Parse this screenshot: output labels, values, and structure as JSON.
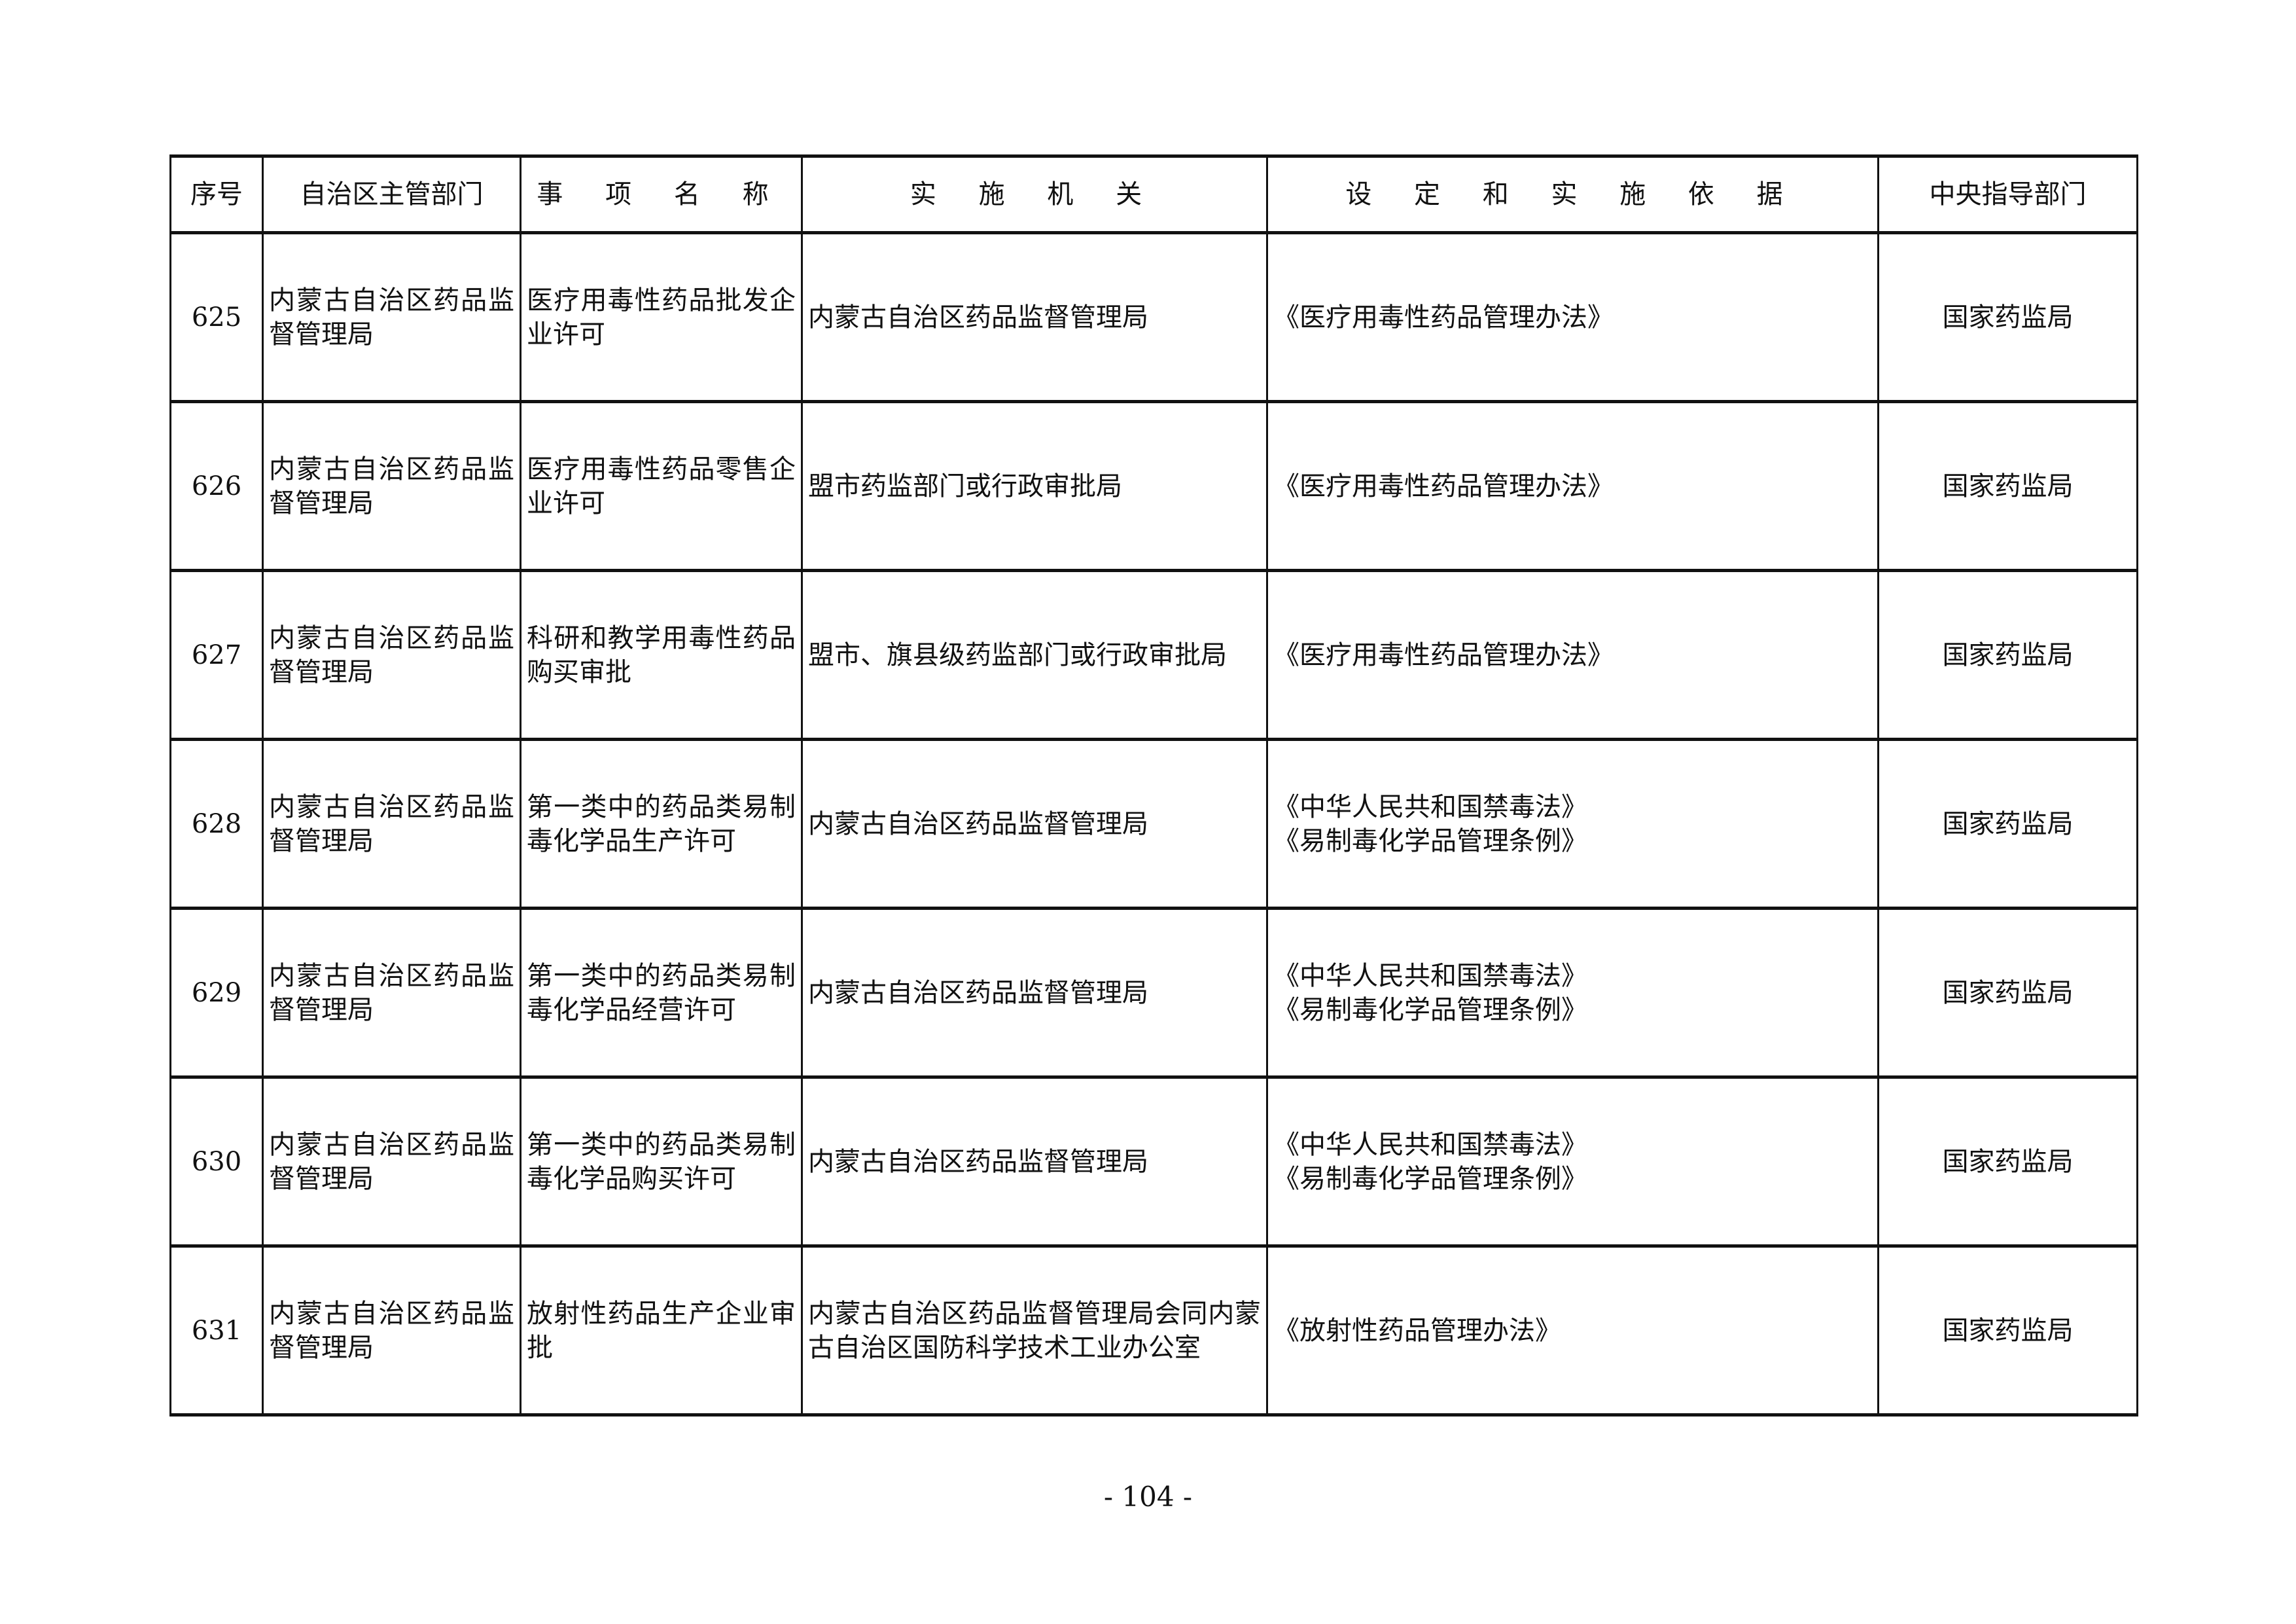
{
  "table": {
    "headers": [
      "序号",
      "自治区主管部门",
      "事 项 名 称",
      "实 施 机 关",
      "设 定 和 实 施 依 据",
      "中央指导部门"
    ],
    "rows": [
      {
        "no": "625",
        "dept": "内蒙古自治区药品监督管理局",
        "item": "医疗用毒性药品批发企业许可",
        "agency": "内蒙古自治区药品监督管理局",
        "basis": [
          "《医疗用毒性药品管理办法》"
        ],
        "central": "国家药监局"
      },
      {
        "no": "626",
        "dept": "内蒙古自治区药品监督管理局",
        "item": "医疗用毒性药品零售企业许可",
        "agency": "盟市药监部门或行政审批局",
        "basis": [
          "《医疗用毒性药品管理办法》"
        ],
        "central": "国家药监局"
      },
      {
        "no": "627",
        "dept": "内蒙古自治区药品监督管理局",
        "item": "科研和教学用毒性药品购买审批",
        "agency": "盟市、旗县级药监部门或行政审批局",
        "basis": [
          "《医疗用毒性药品管理办法》"
        ],
        "central": "国家药监局"
      },
      {
        "no": "628",
        "dept": "内蒙古自治区药品监督管理局",
        "item": "第一类中的药品类易制毒化学品生产许可",
        "agency": "内蒙古自治区药品监督管理局",
        "basis": [
          "《中华人民共和国禁毒法》",
          "《易制毒化学品管理条例》"
        ],
        "central": "国家药监局"
      },
      {
        "no": "629",
        "dept": "内蒙古自治区药品监督管理局",
        "item": "第一类中的药品类易制毒化学品经营许可",
        "agency": "内蒙古自治区药品监督管理局",
        "basis": [
          "《中华人民共和国禁毒法》",
          "《易制毒化学品管理条例》"
        ],
        "central": "国家药监局"
      },
      {
        "no": "630",
        "dept": "内蒙古自治区药品监督管理局",
        "item": "第一类中的药品类易制毒化学品购买许可",
        "agency": "内蒙古自治区药品监督管理局",
        "basis": [
          "《中华人民共和国禁毒法》",
          "《易制毒化学品管理条例》"
        ],
        "central": "国家药监局"
      },
      {
        "no": "631",
        "dept": "内蒙古自治区药品监督管理局",
        "item": "放射性药品生产企业审批",
        "agency": "内蒙古自治区药品监督管理局会同内蒙古自治区国防科学技术工业办公室",
        "basis": [
          "《放射性药品管理办法》"
        ],
        "central": "国家药监局"
      }
    ]
  },
  "page_number": "- 104 -"
}
